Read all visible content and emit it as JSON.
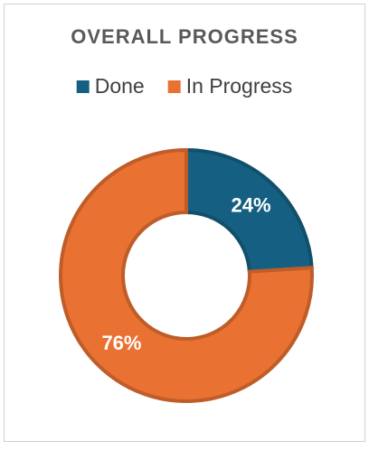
{
  "chart_data": {
    "type": "donut",
    "title": "OVERALL PROGRESS",
    "categories": [
      "Done",
      "In Progress"
    ],
    "values": [
      24,
      76
    ],
    "value_labels": [
      "24%",
      "76%"
    ],
    "colors": [
      "#156082",
      "#e97132"
    ],
    "legend": "top"
  }
}
